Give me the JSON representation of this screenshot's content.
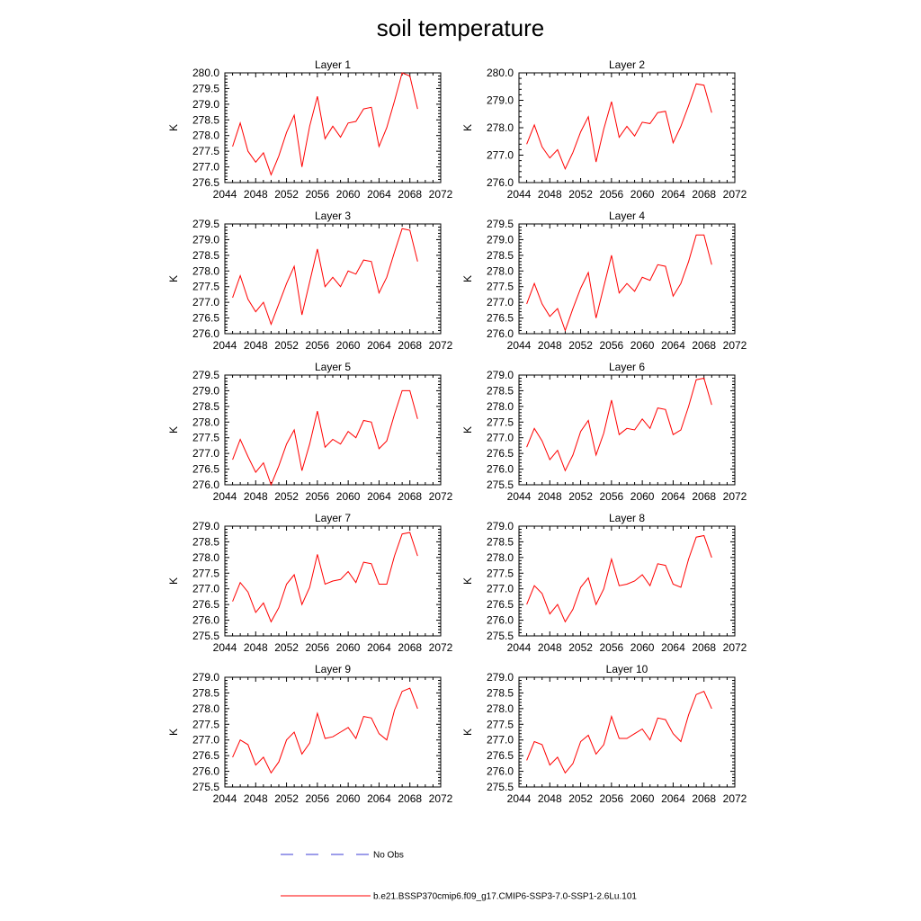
{
  "figure": {
    "title": "soil temperature"
  },
  "legend": {
    "items": [
      {
        "label": "No Obs",
        "color": "#3b3bd6",
        "dash": true
      },
      {
        "label": "b.e21.BSSP370cmip6.f09_g17.CMIP6-SSP3-7.0-SSP1-2.6Lu.101",
        "color": "#ff0000",
        "dash": false
      }
    ]
  },
  "chart_data": [
    {
      "type": "line",
      "title": "Layer 1",
      "ylabel": "K",
      "xlim": [
        2044,
        2072
      ],
      "xticks": [
        2044,
        2048,
        2052,
        2056,
        2060,
        2064,
        2068,
        2072
      ],
      "ylim": [
        276.5,
        280.0
      ],
      "yticks": [
        "276.5",
        "277.0",
        "277.5",
        "278.0",
        "278.5",
        "279.0",
        "279.5",
        "280.0"
      ],
      "x": [
        2045,
        2046,
        2047,
        2048,
        2049,
        2050,
        2051,
        2052,
        2053,
        2054,
        2055,
        2056,
        2057,
        2058,
        2059,
        2060,
        2061,
        2062,
        2063,
        2064,
        2065,
        2066,
        2067,
        2068,
        2069
      ],
      "series": [
        {
          "color": "#ff0000",
          "values": [
            277.65,
            278.4,
            277.5,
            277.15,
            277.45,
            276.75,
            277.35,
            278.1,
            278.65,
            277.0,
            278.3,
            279.25,
            277.9,
            278.3,
            277.95,
            278.4,
            278.45,
            278.85,
            278.9,
            277.65,
            278.25,
            279.1,
            280.0,
            279.9,
            278.85
          ]
        }
      ]
    },
    {
      "type": "line",
      "title": "Layer 2",
      "ylabel": "K",
      "xlim": [
        2044,
        2072
      ],
      "xticks": [
        2044,
        2048,
        2052,
        2056,
        2060,
        2064,
        2068,
        2072
      ],
      "ylim": [
        276.0,
        280.0
      ],
      "yticks": [
        "276.0",
        "277.0",
        "278.0",
        "279.0",
        "280.0"
      ],
      "x": [
        2045,
        2046,
        2047,
        2048,
        2049,
        2050,
        2051,
        2052,
        2053,
        2054,
        2055,
        2056,
        2057,
        2058,
        2059,
        2060,
        2061,
        2062,
        2063,
        2064,
        2065,
        2066,
        2067,
        2068,
        2069
      ],
      "series": [
        {
          "color": "#ff0000",
          "values": [
            277.4,
            278.1,
            277.3,
            276.9,
            277.2,
            276.5,
            277.1,
            277.85,
            278.4,
            276.75,
            277.95,
            278.95,
            277.65,
            278.05,
            277.7,
            278.2,
            278.15,
            278.55,
            278.6,
            277.45,
            278.05,
            278.8,
            279.6,
            279.55,
            278.55
          ]
        }
      ]
    },
    {
      "type": "line",
      "title": "Layer 3",
      "ylabel": "K",
      "xlim": [
        2044,
        2072
      ],
      "xticks": [
        2044,
        2048,
        2052,
        2056,
        2060,
        2064,
        2068,
        2072
      ],
      "ylim": [
        276.0,
        279.5
      ],
      "yticks": [
        "276.0",
        "276.5",
        "277.0",
        "277.5",
        "278.0",
        "278.5",
        "279.0",
        "279.5"
      ],
      "x": [
        2045,
        2046,
        2047,
        2048,
        2049,
        2050,
        2051,
        2052,
        2053,
        2054,
        2055,
        2056,
        2057,
        2058,
        2059,
        2060,
        2061,
        2062,
        2063,
        2064,
        2065,
        2066,
        2067,
        2068,
        2069
      ],
      "series": [
        {
          "color": "#ff0000",
          "values": [
            277.15,
            277.85,
            277.1,
            276.7,
            277.0,
            276.3,
            276.95,
            277.6,
            278.15,
            276.6,
            277.65,
            278.7,
            277.5,
            277.8,
            277.5,
            278.0,
            277.9,
            278.35,
            278.3,
            277.3,
            277.8,
            278.6,
            279.35,
            279.3,
            278.3
          ]
        }
      ]
    },
    {
      "type": "line",
      "title": "Layer 4",
      "ylabel": "K",
      "xlim": [
        2044,
        2072
      ],
      "xticks": [
        2044,
        2048,
        2052,
        2056,
        2060,
        2064,
        2068,
        2072
      ],
      "ylim": [
        276.0,
        279.5
      ],
      "yticks": [
        "276.0",
        "276.5",
        "277.0",
        "277.5",
        "278.0",
        "278.5",
        "279.0",
        "279.5"
      ],
      "x": [
        2045,
        2046,
        2047,
        2048,
        2049,
        2050,
        2051,
        2052,
        2053,
        2054,
        2055,
        2056,
        2057,
        2058,
        2059,
        2060,
        2061,
        2062,
        2063,
        2064,
        2065,
        2066,
        2067,
        2068,
        2069
      ],
      "series": [
        {
          "color": "#ff0000",
          "values": [
            276.95,
            277.6,
            276.95,
            276.55,
            276.8,
            276.1,
            276.8,
            277.45,
            277.95,
            276.5,
            277.5,
            278.5,
            277.3,
            277.6,
            277.35,
            277.8,
            277.7,
            278.2,
            278.15,
            277.2,
            277.6,
            278.3,
            279.15,
            279.15,
            278.2
          ]
        }
      ]
    },
    {
      "type": "line",
      "title": "Layer 5",
      "ylabel": "K",
      "xlim": [
        2044,
        2072
      ],
      "xticks": [
        2044,
        2048,
        2052,
        2056,
        2060,
        2064,
        2068,
        2072
      ],
      "ylim": [
        276.0,
        279.5
      ],
      "yticks": [
        "276.0",
        "276.5",
        "277.0",
        "277.5",
        "278.0",
        "278.5",
        "279.0",
        "279.5"
      ],
      "x": [
        2045,
        2046,
        2047,
        2048,
        2049,
        2050,
        2051,
        2052,
        2053,
        2054,
        2055,
        2056,
        2057,
        2058,
        2059,
        2060,
        2061,
        2062,
        2063,
        2064,
        2065,
        2066,
        2067,
        2068,
        2069
      ],
      "series": [
        {
          "color": "#ff0000",
          "values": [
            276.8,
            277.45,
            276.9,
            276.4,
            276.7,
            276.0,
            276.6,
            277.3,
            277.75,
            276.45,
            277.3,
            278.35,
            277.2,
            277.45,
            277.3,
            277.7,
            277.5,
            278.05,
            278.0,
            277.15,
            277.4,
            278.25,
            279.0,
            279.0,
            278.1
          ]
        }
      ]
    },
    {
      "type": "line",
      "title": "Layer 6",
      "ylabel": "K",
      "xlim": [
        2044,
        2072
      ],
      "xticks": [
        2044,
        2048,
        2052,
        2056,
        2060,
        2064,
        2068,
        2072
      ],
      "ylim": [
        275.5,
        279.0
      ],
      "yticks": [
        "275.5",
        "276.0",
        "276.5",
        "277.0",
        "277.5",
        "278.0",
        "278.5",
        "279.0"
      ],
      "x": [
        2045,
        2046,
        2047,
        2048,
        2049,
        2050,
        2051,
        2052,
        2053,
        2054,
        2055,
        2056,
        2057,
        2058,
        2059,
        2060,
        2061,
        2062,
        2063,
        2064,
        2065,
        2066,
        2067,
        2068,
        2069
      ],
      "series": [
        {
          "color": "#ff0000",
          "values": [
            276.7,
            277.3,
            276.9,
            276.3,
            276.6,
            275.95,
            276.45,
            277.2,
            277.55,
            276.45,
            277.15,
            278.2,
            277.1,
            277.3,
            277.25,
            277.6,
            277.3,
            277.95,
            277.9,
            277.1,
            277.25,
            278.0,
            278.85,
            278.9,
            278.05
          ]
        }
      ]
    },
    {
      "type": "line",
      "title": "Layer 7",
      "ylabel": "K",
      "xlim": [
        2044,
        2072
      ],
      "xticks": [
        2044,
        2048,
        2052,
        2056,
        2060,
        2064,
        2068,
        2072
      ],
      "ylim": [
        275.5,
        279.0
      ],
      "yticks": [
        "275.5",
        "276.0",
        "276.5",
        "277.0",
        "277.5",
        "278.0",
        "278.5",
        "279.0"
      ],
      "x": [
        2045,
        2046,
        2047,
        2048,
        2049,
        2050,
        2051,
        2052,
        2053,
        2054,
        2055,
        2056,
        2057,
        2058,
        2059,
        2060,
        2061,
        2062,
        2063,
        2064,
        2065,
        2066,
        2067,
        2068,
        2069
      ],
      "series": [
        {
          "color": "#ff0000",
          "values": [
            276.6,
            277.2,
            276.9,
            276.25,
            276.55,
            275.95,
            276.4,
            277.15,
            277.45,
            276.5,
            277.05,
            278.1,
            277.15,
            277.25,
            277.3,
            277.55,
            277.2,
            277.85,
            277.8,
            277.15,
            277.15,
            278.05,
            278.75,
            278.8,
            278.05
          ]
        }
      ]
    },
    {
      "type": "line",
      "title": "Layer 8",
      "ylabel": "K",
      "xlim": [
        2044,
        2072
      ],
      "xticks": [
        2044,
        2048,
        2052,
        2056,
        2060,
        2064,
        2068,
        2072
      ],
      "ylim": [
        275.5,
        279.0
      ],
      "yticks": [
        "275.5",
        "276.0",
        "276.5",
        "277.0",
        "277.5",
        "278.0",
        "278.5",
        "279.0"
      ],
      "x": [
        2045,
        2046,
        2047,
        2048,
        2049,
        2050,
        2051,
        2052,
        2053,
        2054,
        2055,
        2056,
        2057,
        2058,
        2059,
        2060,
        2061,
        2062,
        2063,
        2064,
        2065,
        2066,
        2067,
        2068,
        2069
      ],
      "series": [
        {
          "color": "#ff0000",
          "values": [
            276.5,
            277.1,
            276.85,
            276.2,
            276.5,
            275.95,
            276.35,
            277.05,
            277.35,
            276.5,
            277.0,
            277.95,
            277.1,
            277.15,
            277.25,
            277.45,
            277.1,
            277.8,
            277.75,
            277.15,
            277.05,
            277.95,
            278.65,
            278.7,
            278.0
          ]
        }
      ]
    },
    {
      "type": "line",
      "title": "Layer 9",
      "ylabel": "K",
      "xlim": [
        2044,
        2072
      ],
      "xticks": [
        2044,
        2048,
        2052,
        2056,
        2060,
        2064,
        2068,
        2072
      ],
      "ylim": [
        275.5,
        279.0
      ],
      "yticks": [
        "275.5",
        "276.0",
        "276.5",
        "277.0",
        "277.5",
        "278.0",
        "278.5",
        "279.0"
      ],
      "x": [
        2045,
        2046,
        2047,
        2048,
        2049,
        2050,
        2051,
        2052,
        2053,
        2054,
        2055,
        2056,
        2057,
        2058,
        2059,
        2060,
        2061,
        2062,
        2063,
        2064,
        2065,
        2066,
        2067,
        2068,
        2069
      ],
      "series": [
        {
          "color": "#ff0000",
          "values": [
            276.45,
            277.0,
            276.85,
            276.2,
            276.45,
            275.95,
            276.3,
            277.0,
            277.25,
            276.55,
            276.9,
            277.85,
            277.05,
            277.1,
            277.25,
            277.4,
            277.05,
            277.75,
            277.7,
            277.2,
            277.0,
            277.95,
            278.55,
            278.65,
            278.0
          ]
        }
      ]
    },
    {
      "type": "line",
      "title": "Layer 10",
      "ylabel": "K",
      "xlim": [
        2044,
        2072
      ],
      "xticks": [
        2044,
        2048,
        2052,
        2056,
        2060,
        2064,
        2068,
        2072
      ],
      "ylim": [
        275.5,
        279.0
      ],
      "yticks": [
        "275.5",
        "276.0",
        "276.5",
        "277.0",
        "277.5",
        "278.0",
        "278.5",
        "279.0"
      ],
      "x": [
        2045,
        2046,
        2047,
        2048,
        2049,
        2050,
        2051,
        2052,
        2053,
        2054,
        2055,
        2056,
        2057,
        2058,
        2059,
        2060,
        2061,
        2062,
        2063,
        2064,
        2065,
        2066,
        2067,
        2068,
        2069
      ],
      "series": [
        {
          "color": "#ff0000",
          "values": [
            276.35,
            276.95,
            276.85,
            276.2,
            276.45,
            275.95,
            276.25,
            276.95,
            277.15,
            276.55,
            276.85,
            277.75,
            277.05,
            277.05,
            277.2,
            277.35,
            277.0,
            277.7,
            277.65,
            277.2,
            276.95,
            277.8,
            278.45,
            278.55,
            278.0
          ]
        }
      ]
    }
  ]
}
